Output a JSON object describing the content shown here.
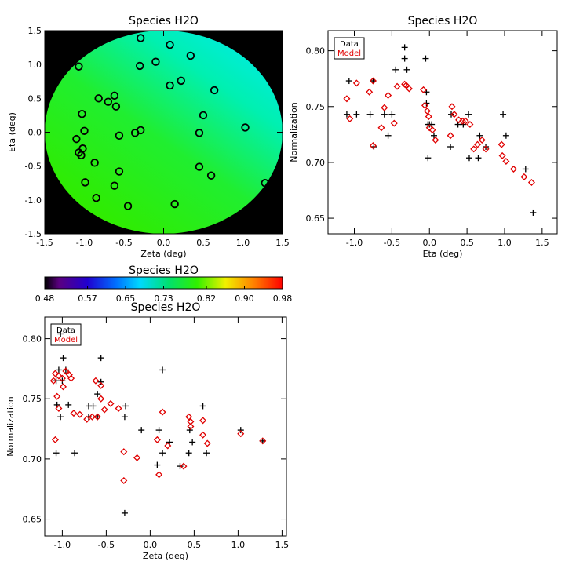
{
  "colors": {
    "data": "#000000",
    "model": "#e00000",
    "axis": "#000000",
    "mask": "#000000"
  },
  "chart_data": [
    {
      "id": "map",
      "type": "heatmap",
      "title": "Species H2O",
      "xlabel": "Zeta (deg)",
      "ylabel": "Eta (deg)",
      "xlim": [
        -1.5,
        1.5
      ],
      "ylim": [
        -1.5,
        1.5
      ],
      "xticks": [
        "-1.5",
        "-1.0",
        "-0.5",
        "0.0",
        "0.5",
        "1.0",
        "1.5"
      ],
      "yticks": [
        "-1.5",
        "-1.0",
        "-0.5",
        "0.0",
        "0.5",
        "1.0",
        "1.5"
      ],
      "field_range": [
        0.48,
        0.98
      ],
      "points": [
        [
          -0.29,
          1.39
        ],
        [
          0.08,
          1.29
        ],
        [
          -0.3,
          0.98
        ],
        [
          -0.1,
          1.04
        ],
        [
          0.34,
          1.13
        ],
        [
          -1.07,
          0.97
        ],
        [
          0.22,
          0.76
        ],
        [
          0.08,
          0.69
        ],
        [
          0.64,
          0.62
        ],
        [
          -0.62,
          0.54
        ],
        [
          -0.82,
          0.5
        ],
        [
          -0.7,
          0.45
        ],
        [
          -0.6,
          0.38
        ],
        [
          -1.03,
          0.27
        ],
        [
          0.5,
          0.25
        ],
        [
          -1.0,
          0.02
        ],
        [
          -0.29,
          0.03
        ],
        [
          -0.36,
          -0.01
        ],
        [
          0.45,
          -0.01
        ],
        [
          1.03,
          0.07
        ],
        [
          -0.56,
          -0.05
        ],
        [
          -1.1,
          -0.1
        ],
        [
          -1.02,
          -0.24
        ],
        [
          -1.07,
          -0.3
        ],
        [
          -1.04,
          -0.34
        ],
        [
          -0.87,
          -0.45
        ],
        [
          0.45,
          -0.51
        ],
        [
          -0.56,
          -0.58
        ],
        [
          0.6,
          -0.64
        ],
        [
          -0.99,
          -0.74
        ],
        [
          -0.62,
          -0.79
        ],
        [
          1.28,
          -0.75
        ],
        [
          -0.85,
          -0.97
        ],
        [
          0.14,
          -1.06
        ],
        [
          -0.45,
          -1.09
        ]
      ]
    },
    {
      "id": "colorbar",
      "type": "colorbar",
      "title": "Species H2O",
      "range": [
        0.48,
        0.98
      ],
      "ticks": [
        "0.48",
        "0.57",
        "0.65",
        "0.73",
        "0.82",
        "0.90",
        "0.98"
      ]
    },
    {
      "id": "eta",
      "type": "scatter",
      "title": "Species H2O",
      "xlabel": "Eta (deg)",
      "ylabel": "Normalization",
      "xlim": [
        -1.35,
        1.7
      ],
      "ylim": [
        0.636,
        0.818
      ],
      "xticks": [
        "-1.0",
        "-0.5",
        "0.0",
        "0.5",
        "1.0",
        "1.5"
      ],
      "yticks": [
        "0.65",
        "0.70",
        "0.75",
        "0.80"
      ],
      "legend": [
        "Data",
        "Model"
      ],
      "series": [
        {
          "name": "Data",
          "marker": "plus",
          "points": [
            [
              -1.07,
              0.773
            ],
            [
              -1.1,
              0.743
            ],
            [
              -0.97,
              0.743
            ],
            [
              -0.75,
              0.773
            ],
            [
              -0.79,
              0.743
            ],
            [
              -0.6,
              0.743
            ],
            [
              -0.5,
              0.743
            ],
            [
              -0.55,
              0.724
            ],
            [
              -0.74,
              0.714
            ],
            [
              -0.45,
              0.783
            ],
            [
              -0.33,
              0.803
            ],
            [
              -0.33,
              0.793
            ],
            [
              -0.3,
              0.783
            ],
            [
              -0.05,
              0.793
            ],
            [
              -0.04,
              0.763
            ],
            [
              -0.04,
              0.753
            ],
            [
              -0.02,
              0.734
            ],
            [
              0.0,
              0.734
            ],
            [
              0.03,
              0.734
            ],
            [
              -0.02,
              0.704
            ],
            [
              0.06,
              0.724
            ],
            [
              0.28,
              0.714
            ],
            [
              0.29,
              0.743
            ],
            [
              0.38,
              0.734
            ],
            [
              0.45,
              0.734
            ],
            [
              0.52,
              0.743
            ],
            [
              0.53,
              0.704
            ],
            [
              0.65,
              0.704
            ],
            [
              0.67,
              0.724
            ],
            [
              0.75,
              0.714
            ],
            [
              0.98,
              0.743
            ],
            [
              1.02,
              0.724
            ],
            [
              1.28,
              0.694
            ],
            [
              1.38,
              0.655
            ]
          ]
        },
        {
          "name": "Model",
          "marker": "diamond",
          "points": [
            [
              -1.1,
              0.757
            ],
            [
              -1.06,
              0.739
            ],
            [
              -0.97,
              0.771
            ],
            [
              -0.8,
              0.763
            ],
            [
              -0.75,
              0.773
            ],
            [
              -0.75,
              0.715
            ],
            [
              -0.64,
              0.731
            ],
            [
              -0.6,
              0.749
            ],
            [
              -0.55,
              0.76
            ],
            [
              -0.47,
              0.735
            ],
            [
              -0.43,
              0.768
            ],
            [
              -0.33,
              0.77
            ],
            [
              -0.31,
              0.769
            ],
            [
              -0.27,
              0.766
            ],
            [
              -0.08,
              0.765
            ],
            [
              -0.06,
              0.751
            ],
            [
              -0.03,
              0.746
            ],
            [
              -0.01,
              0.741
            ],
            [
              0.0,
              0.731
            ],
            [
              0.04,
              0.729
            ],
            [
              0.08,
              0.72
            ],
            [
              0.28,
              0.724
            ],
            [
              0.3,
              0.75
            ],
            [
              0.33,
              0.743
            ],
            [
              0.39,
              0.738
            ],
            [
              0.44,
              0.737
            ],
            [
              0.48,
              0.737
            ],
            [
              0.54,
              0.734
            ],
            [
              0.59,
              0.712
            ],
            [
              0.64,
              0.716
            ],
            [
              0.7,
              0.72
            ],
            [
              0.75,
              0.712
            ],
            [
              0.96,
              0.716
            ],
            [
              0.97,
              0.706
            ],
            [
              1.02,
              0.701
            ],
            [
              1.12,
              0.694
            ],
            [
              1.26,
              0.687
            ],
            [
              1.36,
              0.682
            ]
          ]
        }
      ]
    },
    {
      "id": "zeta",
      "type": "scatter",
      "title": "Species H2O",
      "xlabel": "Zeta (deg)",
      "ylabel": "Normalization",
      "xlim": [
        -1.2,
        1.55
      ],
      "ylim": [
        0.636,
        0.818
      ],
      "xticks": [
        "-1.0",
        "-0.5",
        "0.0",
        "0.5",
        "1.0",
        "1.5"
      ],
      "yticks": [
        "0.65",
        "0.70",
        "0.75",
        "0.80"
      ],
      "legend": [
        "Data",
        "Model"
      ],
      "series": [
        {
          "name": "Data",
          "marker": "plus",
          "points": [
            [
              -1.02,
              0.804
            ],
            [
              -0.99,
              0.784
            ],
            [
              -1.04,
              0.774
            ],
            [
              -0.96,
              0.774
            ],
            [
              -1.07,
              0.765
            ],
            [
              -1.0,
              0.765
            ],
            [
              -0.56,
              0.784
            ],
            [
              -0.56,
              0.764
            ],
            [
              -0.6,
              0.754
            ],
            [
              -1.06,
              0.745
            ],
            [
              -0.93,
              0.745
            ],
            [
              -1.02,
              0.735
            ],
            [
              -0.7,
              0.744
            ],
            [
              -0.65,
              0.744
            ],
            [
              -0.28,
              0.744
            ],
            [
              -0.7,
              0.735
            ],
            [
              -0.6,
              0.735
            ],
            [
              -0.29,
              0.735
            ],
            [
              -0.86,
              0.705
            ],
            [
              -1.07,
              0.705
            ],
            [
              -0.1,
              0.724
            ],
            [
              0.1,
              0.724
            ],
            [
              0.14,
              0.774
            ],
            [
              0.22,
              0.714
            ],
            [
              0.45,
              0.724
            ],
            [
              0.48,
              0.714
            ],
            [
              0.6,
              0.744
            ],
            [
              0.64,
              0.705
            ],
            [
              0.44,
              0.705
            ],
            [
              0.34,
              0.694
            ],
            [
              0.08,
              0.695
            ],
            [
              0.14,
              0.705
            ],
            [
              1.03,
              0.724
            ],
            [
              1.28,
              0.715
            ],
            [
              -0.29,
              0.655
            ]
          ]
        },
        {
          "name": "Model",
          "marker": "diamond",
          "points": [
            [
              -1.1,
              0.765
            ],
            [
              -1.08,
              0.771
            ],
            [
              -1.04,
              0.769
            ],
            [
              -1.0,
              0.767
            ],
            [
              -0.96,
              0.773
            ],
            [
              -0.92,
              0.77
            ],
            [
              -0.9,
              0.767
            ],
            [
              -1.06,
              0.752
            ],
            [
              -1.04,
              0.742
            ],
            [
              -0.99,
              0.76
            ],
            [
              -0.87,
              0.738
            ],
            [
              -0.8,
              0.737
            ],
            [
              -0.72,
              0.733
            ],
            [
              -0.66,
              0.735
            ],
            [
              -0.6,
              0.735
            ],
            [
              -0.62,
              0.765
            ],
            [
              -0.56,
              0.761
            ],
            [
              -0.56,
              0.75
            ],
            [
              -0.52,
              0.741
            ],
            [
              -0.45,
              0.746
            ],
            [
              -0.36,
              0.742
            ],
            [
              -1.08,
              0.716
            ],
            [
              -0.3,
              0.706
            ],
            [
              -0.3,
              0.682
            ],
            [
              -0.15,
              0.701
            ],
            [
              0.08,
              0.716
            ],
            [
              0.1,
              0.687
            ],
            [
              0.14,
              0.739
            ],
            [
              0.2,
              0.711
            ],
            [
              0.44,
              0.735
            ],
            [
              0.46,
              0.731
            ],
            [
              0.46,
              0.727
            ],
            [
              0.38,
              0.694
            ],
            [
              0.6,
              0.732
            ],
            [
              0.6,
              0.72
            ],
            [
              0.65,
              0.713
            ],
            [
              1.03,
              0.721
            ],
            [
              1.28,
              0.715
            ]
          ]
        }
      ]
    }
  ]
}
